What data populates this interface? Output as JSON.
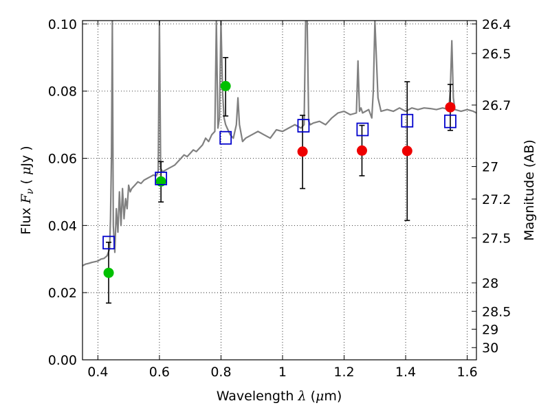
{
  "chart_data": {
    "type": "scatter",
    "title": "",
    "xlabel": "Wavelength",
    "xlabel_symbol": "λ",
    "xlabel_unit_open": " (",
    "xlabel_unit_mu": "μ",
    "xlabel_unit_rest": "m)",
    "ylabel": "Flux",
    "ylabel_symbol": "F",
    "ylabel_subscript": "ν",
    "ylabel_unit_open": " ( ",
    "ylabel_unit_mu": "μ",
    "ylabel_unit_rest": "Jy )",
    "y2label": "Magnitude (AB)",
    "xlim": [
      0.35,
      1.63
    ],
    "ylim": [
      0.0,
      0.101
    ],
    "grid": true,
    "xticks": [
      {
        "value": 0.4,
        "label": "0.4"
      },
      {
        "value": 0.6,
        "label": "0.6"
      },
      {
        "value": 0.8,
        "label": "0.8"
      },
      {
        "value": 1.0,
        "label": "1"
      },
      {
        "value": 1.2,
        "label": "1.2"
      },
      {
        "value": 1.4,
        "label": "1.4"
      },
      {
        "value": 1.6,
        "label": "1.6"
      }
    ],
    "yticks": [
      {
        "value": 0.0,
        "label": "0.00"
      },
      {
        "value": 0.02,
        "label": "0.02"
      },
      {
        "value": 0.04,
        "label": "0.04"
      },
      {
        "value": 0.06,
        "label": "0.06"
      },
      {
        "value": 0.08,
        "label": "0.08"
      },
      {
        "value": 0.1,
        "label": "0.10"
      }
    ],
    "y2ticks": [
      {
        "value": 26.4,
        "label": "26.4"
      },
      {
        "value": 26.5,
        "label": "26.5"
      },
      {
        "value": 26.7,
        "label": "26.7"
      },
      {
        "value": 27.0,
        "label": "27"
      },
      {
        "value": 27.2,
        "label": "27.2"
      },
      {
        "value": 27.5,
        "label": "27.5"
      },
      {
        "value": 28.0,
        "label": "28"
      },
      {
        "value": 28.5,
        "label": "28.5"
      },
      {
        "value": 29.0,
        "label": "29"
      },
      {
        "value": 30.0,
        "label": "30"
      }
    ],
    "colors": {
      "spectrum": "#808080",
      "green_points": "#00c000",
      "red_points": "#ee0000",
      "model_squares": "#0000cc",
      "errorbars": "#000000"
    },
    "series": [
      {
        "kind": "spectrum",
        "x": [
          0.35,
          0.36,
          0.37,
          0.38,
          0.39,
          0.4,
          0.41,
          0.42,
          0.43,
          0.438,
          0.441,
          0.444,
          0.447,
          0.45,
          0.455,
          0.46,
          0.465,
          0.47,
          0.475,
          0.48,
          0.485,
          0.49,
          0.495,
          0.5,
          0.505,
          0.51,
          0.52,
          0.53,
          0.54,
          0.55,
          0.56,
          0.57,
          0.58,
          0.59,
          0.596,
          0.6,
          0.604,
          0.61,
          0.62,
          0.63,
          0.64,
          0.65,
          0.66,
          0.67,
          0.68,
          0.69,
          0.7,
          0.71,
          0.72,
          0.73,
          0.74,
          0.75,
          0.76,
          0.77,
          0.78,
          0.785,
          0.79,
          0.795,
          0.8,
          0.805,
          0.81,
          0.815,
          0.82,
          0.83,
          0.84,
          0.85,
          0.855,
          0.86,
          0.87,
          0.88,
          0.9,
          0.92,
          0.94,
          0.96,
          0.98,
          1.0,
          1.02,
          1.04,
          1.06,
          1.07,
          1.075,
          1.08,
          1.085,
          1.09,
          1.1,
          1.12,
          1.14,
          1.16,
          1.18,
          1.2,
          1.22,
          1.24,
          1.245,
          1.25,
          1.255,
          1.26,
          1.28,
          1.29,
          1.295,
          1.3,
          1.31,
          1.32,
          1.34,
          1.36,
          1.38,
          1.4,
          1.42,
          1.44,
          1.46,
          1.48,
          1.5,
          1.52,
          1.54,
          1.545,
          1.55,
          1.555,
          1.56,
          1.58,
          1.6,
          1.62,
          1.63
        ],
        "y": [
          0.028,
          0.0285,
          0.0287,
          0.029,
          0.0292,
          0.0294,
          0.03,
          0.0302,
          0.031,
          0.033,
          0.042,
          0.06,
          0.101,
          0.04,
          0.032,
          0.045,
          0.038,
          0.05,
          0.04,
          0.051,
          0.042,
          0.048,
          0.045,
          0.052,
          0.05,
          0.051,
          0.052,
          0.053,
          0.0525,
          0.0535,
          0.054,
          0.0545,
          0.055,
          0.0548,
          0.056,
          0.101,
          0.057,
          0.056,
          0.0565,
          0.057,
          0.0575,
          0.058,
          0.059,
          0.06,
          0.061,
          0.0605,
          0.0615,
          0.0625,
          0.062,
          0.063,
          0.064,
          0.066,
          0.065,
          0.067,
          0.068,
          0.101,
          0.069,
          0.072,
          0.101,
          0.08,
          0.072,
          0.07,
          0.069,
          0.067,
          0.066,
          0.07,
          0.078,
          0.07,
          0.065,
          0.066,
          0.067,
          0.068,
          0.067,
          0.066,
          0.0685,
          0.068,
          0.069,
          0.07,
          0.069,
          0.07,
          0.101,
          0.101,
          0.071,
          0.07,
          0.0705,
          0.071,
          0.07,
          0.072,
          0.0735,
          0.074,
          0.073,
          0.0735,
          0.089,
          0.074,
          0.075,
          0.0735,
          0.0745,
          0.072,
          0.08,
          0.101,
          0.078,
          0.074,
          0.0745,
          0.074,
          0.075,
          0.074,
          0.075,
          0.0745,
          0.075,
          0.0748,
          0.0745,
          0.075,
          0.0745,
          0.08,
          0.095,
          0.078,
          0.0745,
          0.074,
          0.0745,
          0.074,
          0.0735
        ]
      },
      {
        "kind": "observed",
        "color": "green",
        "points": [
          {
            "x": 0.435,
            "y": 0.0259,
            "yerr": [
              0.0169,
              0.035
            ]
          },
          {
            "x": 0.605,
            "y": 0.0531,
            "yerr": [
              0.047,
              0.059
            ]
          },
          {
            "x": 0.815,
            "y": 0.0815,
            "yerr": [
              0.0726,
              0.09
            ]
          }
        ]
      },
      {
        "kind": "observed",
        "color": "red",
        "points": [
          {
            "x": 1.065,
            "y": 0.062,
            "yerr": [
              0.051,
              0.0728
            ]
          },
          {
            "x": 1.258,
            "y": 0.0623,
            "yerr": [
              0.0548,
              0.0698
            ]
          },
          {
            "x": 1.405,
            "y": 0.0622,
            "yerr": [
              0.0415,
              0.0828
            ]
          },
          {
            "x": 1.545,
            "y": 0.0752,
            "yerr": [
              0.0683,
              0.082
            ]
          }
        ]
      },
      {
        "kind": "model",
        "points": [
          {
            "x": 0.435,
            "y": 0.0349
          },
          {
            "x": 0.605,
            "y": 0.054
          },
          {
            "x": 0.815,
            "y": 0.0661
          },
          {
            "x": 1.068,
            "y": 0.0697
          },
          {
            "x": 1.26,
            "y": 0.0686
          },
          {
            "x": 1.405,
            "y": 0.0712
          },
          {
            "x": 1.545,
            "y": 0.071
          }
        ]
      }
    ]
  }
}
